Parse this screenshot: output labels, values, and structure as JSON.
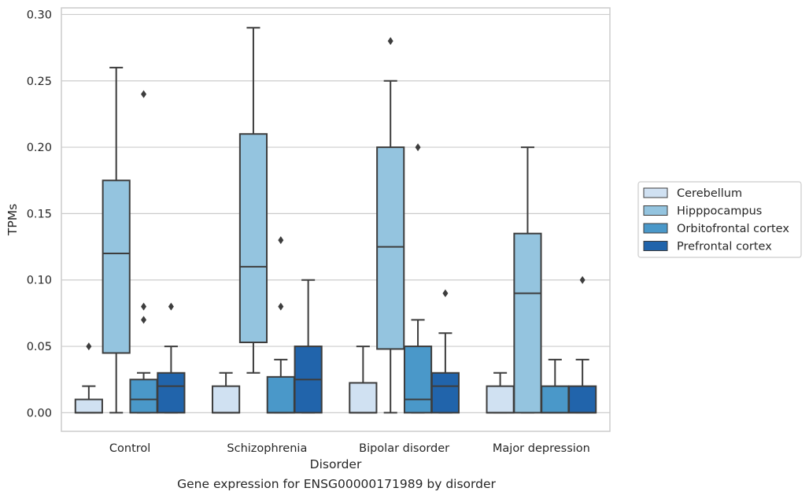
{
  "caption": "Gene expression for ENSG00000171989 by disorder",
  "chart_data": {
    "type": "boxplot",
    "xlabel": "Disorder",
    "ylabel": "TPMs",
    "ylim": [
      -0.014,
      0.305
    ],
    "yticks": [
      0.0,
      0.05,
      0.1,
      0.15,
      0.2,
      0.25,
      0.3
    ],
    "ytick_labels": [
      "0.00",
      "0.05",
      "0.10",
      "0.15",
      "0.20",
      "0.25",
      "0.30"
    ],
    "grid": "horizontal",
    "legend_position": "right",
    "categories": [
      "Control",
      "Schizophrenia",
      "Bipolar disorder",
      "Major depression"
    ],
    "series": [
      {
        "name": "Cerebellum",
        "color": "#d0e1f2",
        "boxes": [
          {
            "whislo": 0.0,
            "q1": 0.0,
            "med": 0.0,
            "q3": 0.01,
            "whishi": 0.02,
            "fliers": [
              0.05
            ]
          },
          {
            "whislo": 0.0,
            "q1": 0.0,
            "med": 0.0,
            "q3": 0.02,
            "whishi": 0.03,
            "fliers": []
          },
          {
            "whislo": 0.0,
            "q1": 0.0,
            "med": 0.0,
            "q3": 0.0225,
            "whishi": 0.05,
            "fliers": []
          },
          {
            "whislo": 0.0,
            "q1": 0.0,
            "med": 0.0,
            "q3": 0.02,
            "whishi": 0.03,
            "fliers": []
          }
        ]
      },
      {
        "name": "Hipppocampus",
        "color": "#94c4df",
        "boxes": [
          {
            "whislo": 0.0,
            "q1": 0.045,
            "med": 0.12,
            "q3": 0.175,
            "whishi": 0.26,
            "fliers": []
          },
          {
            "whislo": 0.03,
            "q1": 0.053,
            "med": 0.11,
            "q3": 0.21,
            "whishi": 0.29,
            "fliers": []
          },
          {
            "whislo": 0.0,
            "q1": 0.048,
            "med": 0.125,
            "q3": 0.2,
            "whishi": 0.25,
            "fliers": [
              0.28
            ]
          },
          {
            "whislo": 0.0,
            "q1": 0.0,
            "med": 0.09,
            "q3": 0.135,
            "whishi": 0.2,
            "fliers": []
          }
        ]
      },
      {
        "name": "Orbitofrontal cortex",
        "color": "#4a98c9",
        "boxes": [
          {
            "whislo": 0.0,
            "q1": 0.0,
            "med": 0.01,
            "q3": 0.025,
            "whishi": 0.03,
            "fliers": [
              0.07,
              0.08,
              0.24
            ]
          },
          {
            "whislo": 0.0,
            "q1": 0.0,
            "med": 0.0,
            "q3": 0.027,
            "whishi": 0.04,
            "fliers": [
              0.08,
              0.13
            ]
          },
          {
            "whislo": 0.0,
            "q1": 0.0,
            "med": 0.01,
            "q3": 0.05,
            "whishi": 0.07,
            "fliers": [
              0.2
            ]
          },
          {
            "whislo": 0.0,
            "q1": 0.0,
            "med": 0.0,
            "q3": 0.02,
            "whishi": 0.04,
            "fliers": []
          }
        ]
      },
      {
        "name": "Prefrontal cortex",
        "color": "#2164ab",
        "boxes": [
          {
            "whislo": 0.0,
            "q1": 0.0,
            "med": 0.02,
            "q3": 0.03,
            "whishi": 0.05,
            "fliers": [
              0.08
            ]
          },
          {
            "whislo": 0.0,
            "q1": 0.0,
            "med": 0.025,
            "q3": 0.05,
            "whishi": 0.1,
            "fliers": []
          },
          {
            "whislo": 0.0,
            "q1": 0.0,
            "med": 0.02,
            "q3": 0.03,
            "whishi": 0.06,
            "fliers": [
              0.09
            ]
          },
          {
            "whislo": 0.0,
            "q1": 0.0,
            "med": 0.0,
            "q3": 0.02,
            "whishi": 0.04,
            "fliers": [
              0.1
            ]
          }
        ]
      }
    ]
  }
}
